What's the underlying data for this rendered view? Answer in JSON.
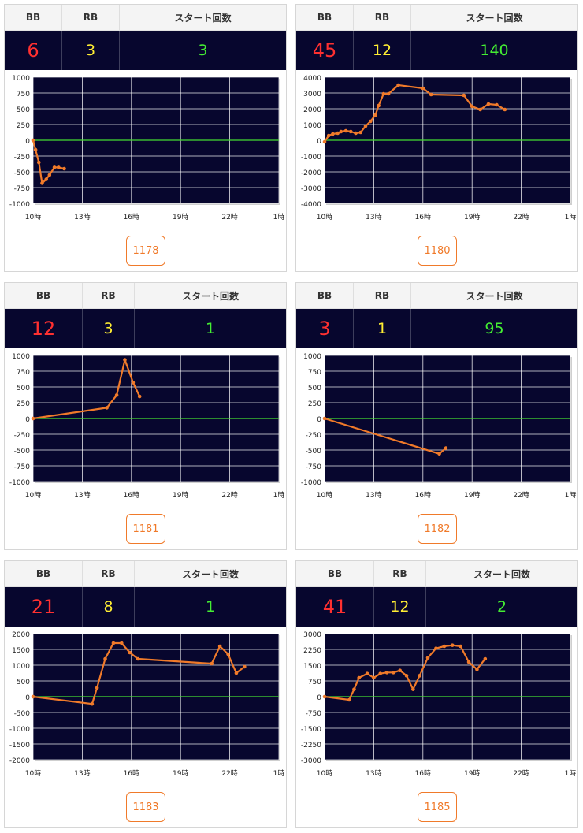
{
  "headers": {
    "bb": "BB",
    "rb": "RB",
    "start": "スタート回数"
  },
  "x_ticks": [
    "10時",
    "13時",
    "16時",
    "19時",
    "22時",
    "1時"
  ],
  "colors": {
    "panel_bg": "#07062e",
    "bb": "#ff3030",
    "rb": "#ffee33",
    "start": "#44ee33",
    "line": "#f07a2a",
    "zero": "#44dd33"
  },
  "machines": [
    {
      "bb": "6",
      "rb": "3",
      "start": "3",
      "id": "1178"
    },
    {
      "bb": "45",
      "rb": "12",
      "start": "140",
      "id": "1180"
    },
    {
      "bb": "12",
      "rb": "3",
      "start": "1",
      "id": "1181"
    },
    {
      "bb": "3",
      "rb": "1",
      "start": "95",
      "id": "1182"
    },
    {
      "bb": "21",
      "rb": "8",
      "start": "1",
      "id": "1183"
    },
    {
      "bb": "41",
      "rb": "12",
      "start": "2",
      "id": "1185"
    }
  ],
  "chart_data": [
    {
      "type": "line",
      "x_unit": "hour",
      "xlim": [
        10,
        25
      ],
      "ylim": [
        -1000,
        1000
      ],
      "y_ticks": [
        "1000",
        "750",
        "500",
        "250",
        "0",
        "-250",
        "-500",
        "-750",
        "-1000"
      ],
      "series": [
        {
          "x": [
            10,
            10.15,
            10.35,
            10.55,
            10.8,
            11,
            11.3,
            11.55,
            11.9
          ],
          "y": [
            0,
            -150,
            -350,
            -680,
            -620,
            -550,
            -430,
            -430,
            -450
          ]
        }
      ]
    },
    {
      "type": "line",
      "x_unit": "hour",
      "xlim": [
        10,
        25
      ],
      "ylim": [
        -4000,
        4000
      ],
      "y_ticks": [
        "4000",
        "3000",
        "2000",
        "1000",
        "0",
        "-1000",
        "-2000",
        "-3000",
        "-4000"
      ],
      "series": [
        {
          "x": [
            10,
            10.25,
            10.5,
            10.8,
            11,
            11.3,
            11.6,
            11.9,
            12.2,
            12.5,
            12.8,
            13.1,
            13.3,
            13.6,
            13.9,
            14.5,
            16,
            16.5,
            18.5,
            19,
            19.5,
            20,
            20.5,
            21
          ],
          "y": [
            -100,
            300,
            400,
            450,
            550,
            600,
            550,
            450,
            500,
            900,
            1200,
            1600,
            2200,
            2950,
            2950,
            3500,
            3300,
            2900,
            2850,
            2150,
            1950,
            2300,
            2250,
            1950
          ]
        }
      ]
    },
    {
      "type": "line",
      "x_unit": "hour",
      "xlim": [
        10,
        25
      ],
      "ylim": [
        -1000,
        1000
      ],
      "y_ticks": [
        "1000",
        "750",
        "500",
        "250",
        "0",
        "-250",
        "-500",
        "-750",
        "-1000"
      ],
      "series": [
        {
          "x": [
            10,
            14.5,
            15.1,
            15.6,
            16.1,
            16.5
          ],
          "y": [
            0,
            170,
            370,
            930,
            570,
            350
          ]
        }
      ]
    },
    {
      "type": "line",
      "x_unit": "hour",
      "xlim": [
        10,
        25
      ],
      "ylim": [
        -1000,
        1000
      ],
      "y_ticks": [
        "1000",
        "750",
        "500",
        "250",
        "0",
        "-250",
        "-500",
        "-750",
        "-1000"
      ],
      "series": [
        {
          "x": [
            10,
            17,
            17.4
          ],
          "y": [
            0,
            -560,
            -470
          ]
        }
      ]
    },
    {
      "type": "line",
      "x_unit": "hour",
      "xlim": [
        10,
        25
      ],
      "ylim": [
        -2000,
        2000
      ],
      "y_ticks": [
        "2000",
        "1500",
        "1000",
        "500",
        "0",
        "-500",
        "-1000",
        "-1500",
        "-2000"
      ],
      "series": [
        {
          "x": [
            10,
            13.6,
            13.9,
            14.4,
            14.9,
            15.4,
            15.9,
            16.4,
            20.9,
            21.4,
            21.9,
            22.4,
            22.9
          ],
          "y": [
            0,
            -230,
            280,
            1200,
            1700,
            1700,
            1400,
            1200,
            1050,
            1600,
            1350,
            750,
            950
          ]
        }
      ]
    },
    {
      "type": "line",
      "x_unit": "hour",
      "xlim": [
        10,
        25
      ],
      "ylim": [
        -3000,
        3000
      ],
      "y_ticks": [
        "3000",
        "2250",
        "1500",
        "750",
        "0",
        "-750",
        "-1500",
        "-2250",
        "-3000"
      ],
      "series": [
        {
          "x": [
            10,
            11.5,
            11.8,
            12.1,
            12.6,
            13,
            13.4,
            13.8,
            14.2,
            14.6,
            15,
            15.4,
            15.8,
            16.3,
            16.8,
            17.3,
            17.8,
            18.3,
            18.8,
            19.3,
            19.8
          ],
          "y": [
            0,
            -150,
            350,
            900,
            1100,
            900,
            1100,
            1150,
            1150,
            1250,
            1000,
            350,
            1000,
            1850,
            2300,
            2400,
            2450,
            2400,
            1650,
            1300,
            1800
          ]
        }
      ]
    }
  ]
}
